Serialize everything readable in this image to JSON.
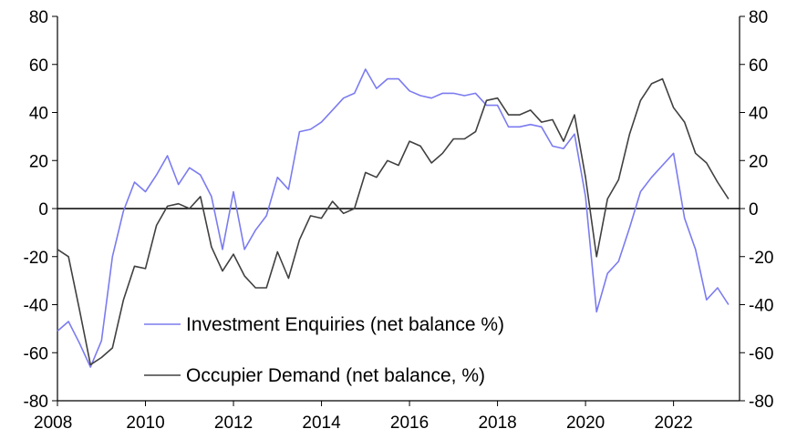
{
  "chart_data": {
    "type": "line",
    "title": "",
    "xlabel": "",
    "ylabel": "",
    "x_range": [
      2008,
      2023.5
    ],
    "ylim": [
      -80,
      80
    ],
    "y_ticks": [
      -80,
      -60,
      -40,
      -20,
      0,
      20,
      40,
      60,
      80
    ],
    "x_ticks": [
      2008,
      2010,
      2012,
      2014,
      2016,
      2018,
      2020,
      2022
    ],
    "y_tick_labels": [
      "-80",
      "-60",
      "-40",
      "-20",
      "0",
      "20",
      "40",
      "60",
      "80"
    ],
    "x_tick_labels": [
      "2008",
      "2010",
      "2012",
      "2014",
      "2016",
      "2018",
      "2020",
      "2022"
    ],
    "secondary_axis": "right",
    "grid": false,
    "zero_line": true,
    "legend_position": "bottom-left",
    "series": [
      {
        "name": "Investment Enquiries (net balance %)",
        "color": "#7b7bf0",
        "x": [
          2008.0,
          2008.25,
          2008.5,
          2008.75,
          2009.0,
          2009.25,
          2009.5,
          2009.75,
          2010.0,
          2010.25,
          2010.5,
          2010.75,
          2011.0,
          2011.25,
          2011.5,
          2011.75,
          2012.0,
          2012.25,
          2012.5,
          2012.75,
          2013.0,
          2013.25,
          2013.5,
          2013.75,
          2014.0,
          2014.25,
          2014.5,
          2014.75,
          2015.0,
          2015.25,
          2015.5,
          2015.75,
          2016.0,
          2016.25,
          2016.5,
          2016.75,
          2017.0,
          2017.25,
          2017.5,
          2017.75,
          2018.0,
          2018.25,
          2018.5,
          2018.75,
          2019.0,
          2019.25,
          2019.5,
          2019.75,
          2020.0,
          2020.25,
          2020.5,
          2020.75,
          2021.0,
          2021.25,
          2021.5,
          2021.75,
          2022.0,
          2022.25,
          2022.5,
          2022.75,
          2023.0,
          2023.25
        ],
        "values": [
          -51,
          -47,
          -56,
          -66,
          -55,
          -20,
          -1,
          11,
          7,
          14,
          22,
          10,
          17,
          14,
          5,
          -17,
          7,
          -17,
          -9,
          -3,
          13,
          8,
          32,
          33,
          36,
          41,
          46,
          48,
          58,
          50,
          54,
          54,
          49,
          47,
          46,
          48,
          48,
          47,
          48,
          43,
          43,
          34,
          34,
          35,
          34,
          26,
          25,
          31,
          5,
          -43,
          -27,
          -22,
          -8,
          7,
          13,
          18,
          23,
          -4,
          -17,
          -38,
          -33,
          -40
        ]
      },
      {
        "name": "Occupier Demand (net balance, %)",
        "color": "#404040",
        "x": [
          2008.0,
          2008.25,
          2008.5,
          2008.75,
          2009.0,
          2009.25,
          2009.5,
          2009.75,
          2010.0,
          2010.25,
          2010.5,
          2010.75,
          2011.0,
          2011.25,
          2011.5,
          2011.75,
          2012.0,
          2012.25,
          2012.5,
          2012.75,
          2013.0,
          2013.25,
          2013.5,
          2013.75,
          2014.0,
          2014.25,
          2014.5,
          2014.75,
          2015.0,
          2015.25,
          2015.5,
          2015.75,
          2016.0,
          2016.25,
          2016.5,
          2016.75,
          2017.0,
          2017.25,
          2017.5,
          2017.75,
          2018.0,
          2018.25,
          2018.5,
          2018.75,
          2019.0,
          2019.25,
          2019.5,
          2019.75,
          2020.0,
          2020.25,
          2020.5,
          2020.75,
          2021.0,
          2021.25,
          2021.5,
          2021.75,
          2022.0,
          2022.25,
          2022.5,
          2022.75,
          2023.0,
          2023.25
        ],
        "values": [
          -17,
          -20,
          -42,
          -65,
          -62,
          -58,
          -38,
          -24,
          -25,
          -7,
          1,
          2,
          0,
          5,
          -16,
          -26,
          -19,
          -28,
          -33,
          -33,
          -18,
          -29,
          -13,
          -3,
          -4,
          3,
          -2,
          0,
          15,
          13,
          20,
          18,
          28,
          26,
          19,
          23,
          29,
          29,
          32,
          45,
          46,
          39,
          39,
          41,
          36,
          37,
          28,
          39,
          13,
          -20,
          4,
          12,
          31,
          45,
          52,
          54,
          42,
          36,
          23,
          19,
          11,
          4
        ]
      }
    ]
  }
}
